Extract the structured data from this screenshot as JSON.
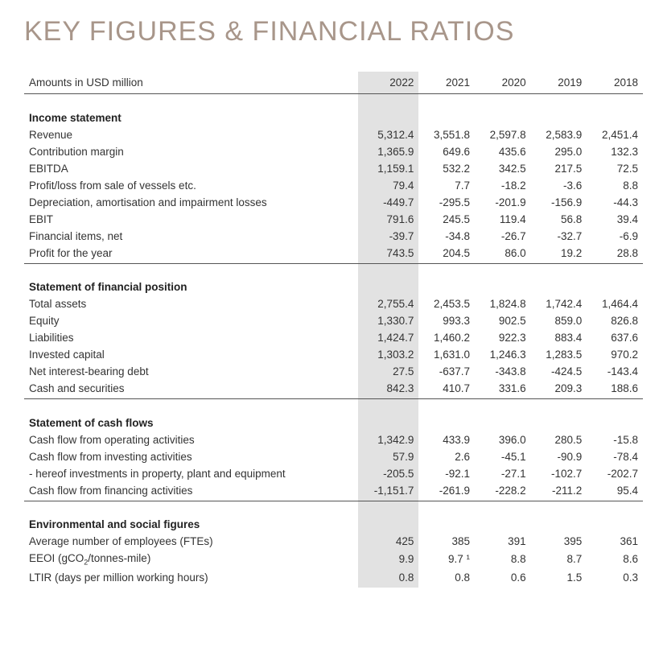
{
  "page": {
    "title": "KEY FIGURES & FINANCIAL RATIOS",
    "currency_note": "Amounts in USD million",
    "years": [
      "2022",
      "2021",
      "2020",
      "2019",
      "2018"
    ],
    "highlight_year_index": 0,
    "colors": {
      "title": "#a8968a",
      "text": "#333333",
      "border": "#555555",
      "highlight_bg": "#e2e2e2",
      "background": "#ffffff"
    },
    "font": {
      "title_size_pt": 25,
      "title_weight": 300,
      "body_size_pt": 10,
      "section_header_weight": 700
    }
  },
  "sections": [
    {
      "title": "Income statement",
      "rows": [
        {
          "label": "Revenue",
          "values": [
            "5,312.4",
            "3,551.8",
            "2,597.8",
            "2,583.9",
            "2,451.4"
          ]
        },
        {
          "label": "Contribution margin",
          "values": [
            "1,365.9",
            "649.6",
            "435.6",
            "295.0",
            "132.3"
          ]
        },
        {
          "label": "EBITDA",
          "values": [
            "1,159.1",
            "532.2",
            "342.5",
            "217.5",
            "72.5"
          ]
        },
        {
          "label": "Profit/loss from sale of vessels etc.",
          "values": [
            "79.4",
            "7.7",
            "-18.2",
            "-3.6",
            "8.8"
          ]
        },
        {
          "label": "Depreciation, amortisation and impairment losses",
          "values": [
            "-449.7",
            "-295.5",
            "-201.9",
            "-156.9",
            "-44.3"
          ]
        },
        {
          "label": "EBIT",
          "values": [
            "791.6",
            "245.5",
            "119.4",
            "56.8",
            "39.4"
          ]
        },
        {
          "label": "Financial items, net",
          "values": [
            "-39.7",
            "-34.8",
            "-26.7",
            "-32.7",
            "-6.9"
          ]
        },
        {
          "label": "Profit for the year",
          "values": [
            "743.5",
            "204.5",
            "86.0",
            "19.2",
            "28.8"
          ]
        }
      ]
    },
    {
      "title": "Statement of financial position",
      "rows": [
        {
          "label": "Total assets",
          "values": [
            "2,755.4",
            "2,453.5",
            "1,824.8",
            "1,742.4",
            "1,464.4"
          ]
        },
        {
          "label": "Equity",
          "values": [
            "1,330.7",
            "993.3",
            "902.5",
            "859.0",
            "826.8"
          ]
        },
        {
          "label": "Liabilities",
          "values": [
            "1,424.7",
            "1,460.2",
            "922.3",
            "883.4",
            "637.6"
          ]
        },
        {
          "label": "Invested capital",
          "values": [
            "1,303.2",
            "1,631.0",
            "1,246.3",
            "1,283.5",
            "970.2"
          ]
        },
        {
          "label": "Net interest-bearing debt",
          "values": [
            "27.5",
            "-637.7",
            "-343.8",
            "-424.5",
            "-143.4"
          ]
        },
        {
          "label": "Cash and securities",
          "values": [
            "842.3",
            "410.7",
            "331.6",
            "209.3",
            "188.6"
          ]
        }
      ]
    },
    {
      "title": "Statement of cash flows",
      "rows": [
        {
          "label": "Cash flow from operating activities",
          "values": [
            "1,342.9",
            "433.9",
            "396.0",
            "280.5",
            "-15.8"
          ]
        },
        {
          "label": "Cash flow from investing activities",
          "values": [
            "57.9",
            "2.6",
            "-45.1",
            "-90.9",
            "-78.4"
          ]
        },
        {
          "label": "  - hereof investments in property, plant and equipment",
          "values": [
            "-205.5",
            "-92.1",
            "-27.1",
            "-102.7",
            "-202.7"
          ]
        },
        {
          "label": "Cash flow from financing activities",
          "values": [
            "-1,151.7",
            "-261.9",
            "-228.2",
            "-211.2",
            "95.4"
          ]
        }
      ]
    },
    {
      "title": "Environmental and social figures",
      "rows": [
        {
          "label": "Average number of employees (FTEs)",
          "values": [
            "425",
            "385",
            "391",
            "395",
            "361"
          ]
        },
        {
          "label_html": "EEOI (gCO<span class='sub'>2</span>/tonnes-mile)",
          "label": "EEOI (gCO2/tonnes-mile)",
          "values": [
            "9.9",
            "9.7 ¹",
            "8.8",
            "8.7",
            "8.6"
          ]
        },
        {
          "label": "LTIR (days per million working hours)",
          "values": [
            "0.8",
            "0.8",
            "0.6",
            "1.5",
            "0.3"
          ]
        }
      ]
    }
  ]
}
